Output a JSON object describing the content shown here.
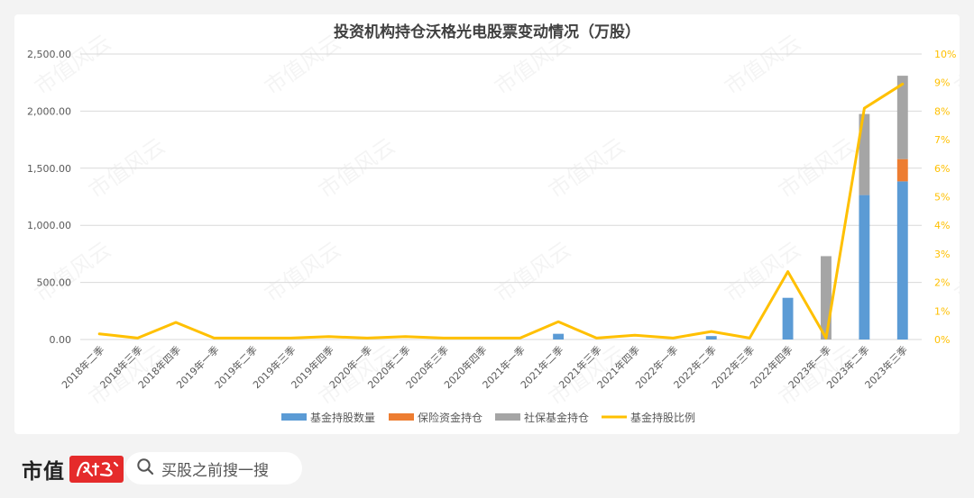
{
  "chart_data": {
    "type": "bar",
    "title": "投资机构持仓沃格光电股票变动情况（万股）",
    "categories": [
      "2018年二季",
      "2018年三季",
      "2018年四季",
      "2019年一季",
      "2019年二季",
      "2019年三季",
      "2019年四季",
      "2020年一季",
      "2020年二季",
      "2020年三季",
      "2020年四季",
      "2021年一季",
      "2021年二季",
      "2021年三季",
      "2021年四季",
      "2022年一季",
      "2022年二季",
      "2022年三季",
      "2022年四季",
      "2023年一季",
      "2023年二季",
      "2023年三季"
    ],
    "series": [
      {
        "name": "基金持股数量",
        "type": "bar",
        "stack": "holdings",
        "color": "#5b9bd5",
        "values": [
          0,
          0,
          0,
          0,
          0,
          0,
          0,
          0,
          0,
          0,
          0,
          0,
          50,
          0,
          0,
          0,
          30,
          0,
          365,
          0,
          1265,
          1385
        ]
      },
      {
        "name": "保险资金持仓",
        "type": "bar",
        "stack": "holdings",
        "color": "#ed7d31",
        "values": [
          0,
          0,
          0,
          0,
          0,
          0,
          0,
          0,
          0,
          0,
          0,
          0,
          0,
          0,
          0,
          0,
          0,
          0,
          0,
          0,
          0,
          195
        ]
      },
      {
        "name": "社保基金持仓",
        "type": "bar",
        "stack": "holdings",
        "color": "#a5a5a5",
        "values": [
          0,
          0,
          0,
          0,
          0,
          0,
          0,
          0,
          0,
          0,
          0,
          0,
          0,
          0,
          0,
          0,
          0,
          0,
          0,
          730,
          710,
          730
        ]
      },
      {
        "name": "基金持股比例",
        "type": "line",
        "axis": "right",
        "color": "#ffc000",
        "values": [
          0.2,
          0.05,
          0.6,
          0.05,
          0.05,
          0.05,
          0.1,
          0.05,
          0.1,
          0.05,
          0.05,
          0.05,
          0.62,
          0.05,
          0.15,
          0.05,
          0.28,
          0.05,
          2.38,
          0.05,
          8.1,
          8.95
        ]
      }
    ],
    "y_left": {
      "min": 0,
      "max": 2500,
      "ticks": [
        0,
        500,
        1000,
        1500,
        2000,
        2500
      ],
      "tick_labels": [
        "0.00",
        "500.00",
        "1,000.00",
        "1,500.00",
        "2,000.00",
        "2,500.00"
      ]
    },
    "y_right": {
      "min": 0,
      "max": 10,
      "ticks": [
        0,
        1,
        2,
        3,
        4,
        5,
        6,
        7,
        8,
        9,
        10
      ],
      "tick_labels": [
        "0%",
        "1%",
        "2%",
        "3%",
        "4%",
        "5%",
        "6%",
        "7%",
        "8%",
        "9%",
        "10%"
      ]
    },
    "grid": true,
    "legend": "bottom"
  },
  "watermark": "市值风云",
  "footer": {
    "brand": "市值",
    "brand_logo_text": "风云",
    "search_placeholder": "买股之前搜一搜"
  },
  "colors": {
    "axis_text": "#595959",
    "right_axis_text": "#ffc000",
    "grid": "#d9d9d9"
  }
}
